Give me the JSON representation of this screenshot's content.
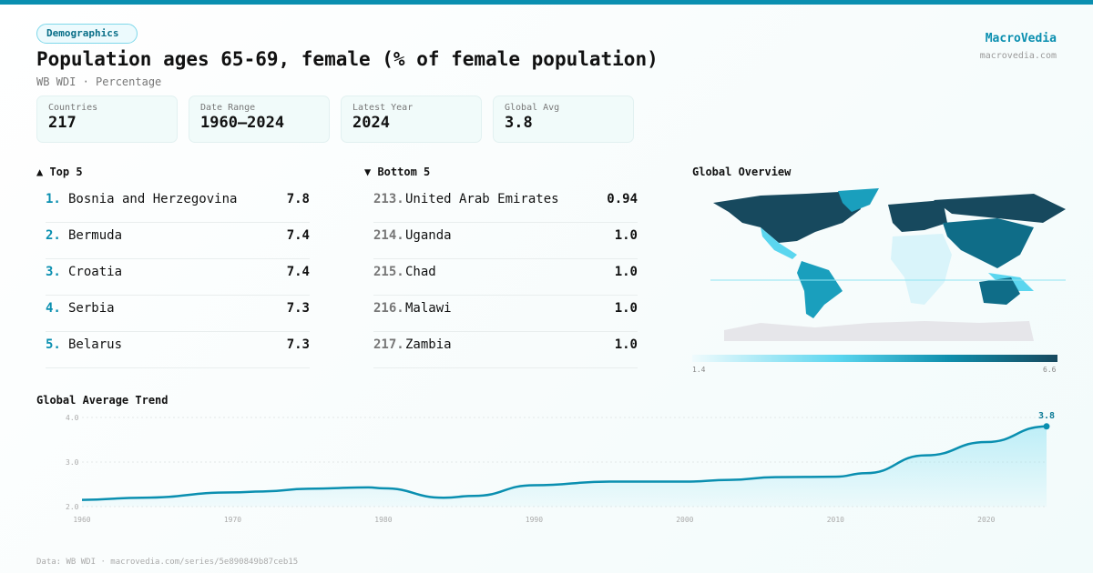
{
  "header": {
    "badge": "Demographics",
    "title": "Population ages 65-69, female (% of female population)",
    "subtitle": "WB WDI · Percentage",
    "brand": "MacroVedia",
    "brand_url": "macrovedia.com"
  },
  "stats": [
    {
      "label": "Countries",
      "value": "217"
    },
    {
      "label": "Date Range",
      "value": "1960–2024"
    },
    {
      "label": "Latest Year",
      "value": "2024"
    },
    {
      "label": "Global Avg",
      "value": "3.8"
    }
  ],
  "top5": {
    "title": "▲ Top 5",
    "items": [
      {
        "rank": "1.",
        "name": "Bosnia and Herzegovina",
        "value": "7.8"
      },
      {
        "rank": "2.",
        "name": "Bermuda",
        "value": "7.4"
      },
      {
        "rank": "3.",
        "name": "Croatia",
        "value": "7.4"
      },
      {
        "rank": "4.",
        "name": "Serbia",
        "value": "7.3"
      },
      {
        "rank": "5.",
        "name": "Belarus",
        "value": "7.3"
      }
    ]
  },
  "bottom5": {
    "title": "▼ Bottom 5",
    "items": [
      {
        "rank": "213.",
        "name": "United Arab Emirates",
        "value": "0.94"
      },
      {
        "rank": "214.",
        "name": "Uganda",
        "value": "1.0"
      },
      {
        "rank": "215.",
        "name": "Chad",
        "value": "1.0"
      },
      {
        "rank": "216.",
        "name": "Malawi",
        "value": "1.0"
      },
      {
        "rank": "217.",
        "name": "Zambia",
        "value": "1.0"
      }
    ]
  },
  "map": {
    "title": "Global Overview",
    "legend_min": "1.4",
    "legend_max": "6.6",
    "colors": {
      "low": "#f0fbfd",
      "mid": "#5bd6ef",
      "high": "#17495e",
      "nodata": "#e6e6ea"
    }
  },
  "chart_data": {
    "type": "area",
    "title": "Global Average Trend",
    "xlabel": "",
    "ylabel": "",
    "x": [
      1960,
      1964,
      1970,
      1972,
      1975,
      1979,
      1980,
      1984,
      1986,
      1990,
      1995,
      2000,
      2003,
      2006,
      2010,
      2012,
      2016,
      2020,
      2024
    ],
    "values": [
      2.15,
      2.2,
      2.32,
      2.34,
      2.4,
      2.43,
      2.41,
      2.2,
      2.24,
      2.48,
      2.56,
      2.56,
      2.6,
      2.66,
      2.67,
      2.75,
      3.15,
      3.45,
      3.8
    ],
    "xlim": [
      1960,
      2024
    ],
    "ylim": [
      2.0,
      4.0
    ],
    "yticks": [
      "2.0",
      "3.0",
      "4.0"
    ],
    "xticks": [
      "1960",
      "1970",
      "1980",
      "1990",
      "2000",
      "2010",
      "2020"
    ],
    "end_label": "3.8",
    "grid": true,
    "color": "#0a8fb0"
  },
  "footer": "Data: WB WDI · macrovedia.com/series/5e890849b87ceb15"
}
